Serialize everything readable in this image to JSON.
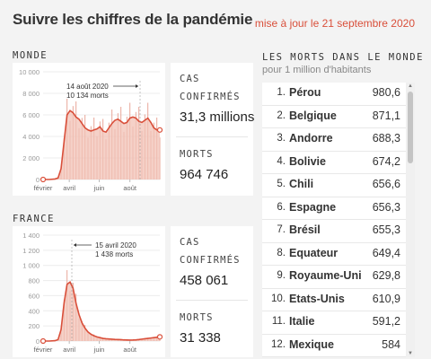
{
  "header": {
    "title": "Suivre les chiffres de la pandémie",
    "updated": "mise à jour le 21 septembre 2020"
  },
  "colors": {
    "accent": "#d94f3a",
    "area": "#f2c2b6",
    "bar": "#e9a89a"
  },
  "monde": {
    "label": "MONDE",
    "cases_label_1": "CAS",
    "cases_label_2": "CONFIRMÉS",
    "cases_value": "31,3 millions",
    "deaths_label": "MORTS",
    "deaths_value": "964 746"
  },
  "france": {
    "label": "FRANCE",
    "cases_label_1": "CAS",
    "cases_label_2": "CONFIRMÉS",
    "cases_value": "458 061",
    "deaths_label": "MORTS",
    "deaths_value": "31 338"
  },
  "chart_data": [
    {
      "type": "area",
      "title": "",
      "xlabel": "",
      "ylabel": "",
      "ylim": [
        0,
        10000
      ],
      "yticks": [
        "10 000",
        "8 000",
        "6 000",
        "4 000",
        "2 000",
        "0"
      ],
      "xticks": [
        "février",
        "avril",
        "juin",
        "août"
      ],
      "annotation": {
        "line1": "14 août 2020",
        "line2": "10 134 morts"
      },
      "x": [
        0,
        0.4,
        0.8,
        1,
        1.2,
        1.4,
        1.6,
        1.8,
        2,
        2.2,
        2.4,
        2.6,
        2.8,
        3,
        3.2,
        3.4,
        3.6,
        3.8,
        4,
        4.2,
        4.4,
        4.6,
        4.8,
        5,
        5.2,
        5.4,
        5.6,
        5.8,
        6,
        6.2,
        6.4,
        6.6,
        6.8,
        7,
        7.2,
        7.4,
        7.6,
        7.8
      ],
      "series": [
        {
          "values": [
            0,
            0,
            50,
            150,
            1000,
            3500,
            6000,
            6400,
            6200,
            5800,
            5600,
            5200,
            4800,
            4600,
            4500,
            4600,
            4700,
            4900,
            4500,
            4400,
            4800,
            5200,
            5500,
            5600,
            5400,
            5200,
            5300,
            5700,
            5800,
            5700,
            5400,
            5300,
            5500,
            5700,
            5300,
            4800,
            4600,
            4600
          ]
        }
      ]
    },
    {
      "type": "area",
      "title": "",
      "xlabel": "",
      "ylabel": "",
      "ylim": [
        0,
        1400
      ],
      "yticks": [
        "1 400",
        "1 200",
        "1 000",
        "800",
        "600",
        "400",
        "200",
        "0"
      ],
      "xticks": [
        "février",
        "avril",
        "juin",
        "août"
      ],
      "annotation": {
        "line1": "15 avril 2020",
        "line2": "1 438 morts"
      },
      "x": [
        0,
        0.4,
        0.8,
        1,
        1.2,
        1.4,
        1.6,
        1.8,
        2,
        2.2,
        2.4,
        2.6,
        2.8,
        3,
        3.2,
        3.4,
        3.6,
        3.8,
        4,
        4.2,
        4.4,
        4.6,
        4.8,
        5,
        5.2,
        5.4,
        5.6,
        5.8,
        6,
        6.2,
        6.4,
        6.6,
        6.8,
        7,
        7.2,
        7.4,
        7.6,
        7.8
      ],
      "series": [
        {
          "values": [
            0,
            0,
            5,
            20,
            150,
            500,
            750,
            780,
            700,
            500,
            350,
            240,
            170,
            120,
            90,
            70,
            55,
            45,
            35,
            30,
            28,
            25,
            22,
            20,
            18,
            15,
            14,
            13,
            14,
            16,
            20,
            25,
            30,
            35,
            40,
            45,
            50,
            55
          ]
        }
      ]
    }
  ],
  "ranking": {
    "title": "LES MORTS DANS LE MONDE",
    "subtitle": "pour 1 million d'habitants",
    "rows": [
      {
        "rank": "1.",
        "country": "Pérou",
        "value": "980,6"
      },
      {
        "rank": "2.",
        "country": "Belgique",
        "value": "871,1"
      },
      {
        "rank": "3.",
        "country": "Andorre",
        "value": "688,3"
      },
      {
        "rank": "4.",
        "country": "Bolivie",
        "value": "674,2"
      },
      {
        "rank": "5.",
        "country": "Chili",
        "value": "656,6"
      },
      {
        "rank": "6.",
        "country": "Espagne",
        "value": "656,3"
      },
      {
        "rank": "7.",
        "country": "Brésil",
        "value": "655,3"
      },
      {
        "rank": "8.",
        "country": "Equateur",
        "value": "649,4"
      },
      {
        "rank": "9.",
        "country": "Royaume-Uni",
        "value": "629,8"
      },
      {
        "rank": "10.",
        "country": "Etats-Unis",
        "value": "610,9"
      },
      {
        "rank": "11.",
        "country": "Italie",
        "value": "591,2"
      },
      {
        "rank": "12.",
        "country": "Mexique",
        "value": "584"
      }
    ]
  }
}
